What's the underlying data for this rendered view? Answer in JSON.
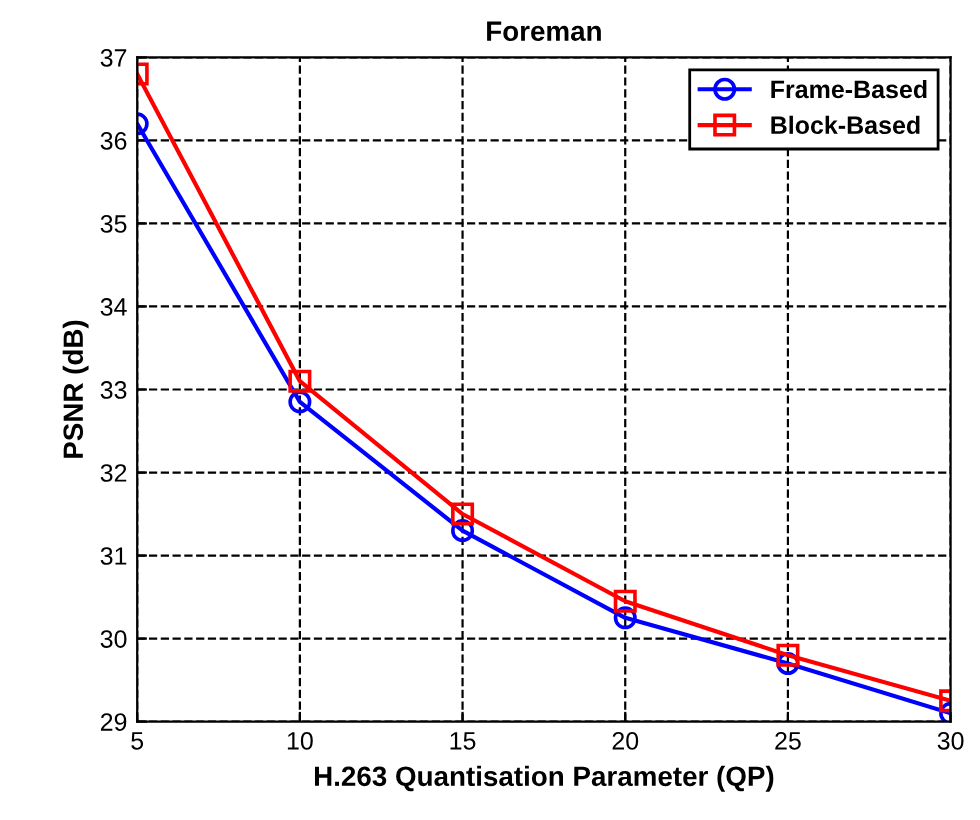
{
  "chart_data": {
    "type": "line",
    "title": "Foreman",
    "xlabel": "H.263 Quantisation Parameter (QP)",
    "ylabel": "PSNR (dB)",
    "x": [
      5,
      10,
      15,
      20,
      25,
      30
    ],
    "series": [
      {
        "name": "Frame-Based",
        "color": "#0000ff",
        "marker": "circle",
        "values": [
          36.2,
          32.85,
          31.3,
          30.25,
          29.7,
          29.1
        ]
      },
      {
        "name": "Block-Based",
        "color": "#ff0000",
        "marker": "square",
        "values": [
          36.8,
          33.1,
          31.5,
          30.45,
          29.8,
          29.25
        ]
      }
    ],
    "xlim": [
      5,
      30
    ],
    "xticks": [
      5,
      10,
      15,
      20,
      25,
      30
    ],
    "ylim": [
      29,
      37
    ],
    "yticks": [
      29,
      30,
      31,
      32,
      33,
      34,
      35,
      36,
      37
    ],
    "grid": true,
    "legend": "top right",
    "line_style": "solid"
  }
}
